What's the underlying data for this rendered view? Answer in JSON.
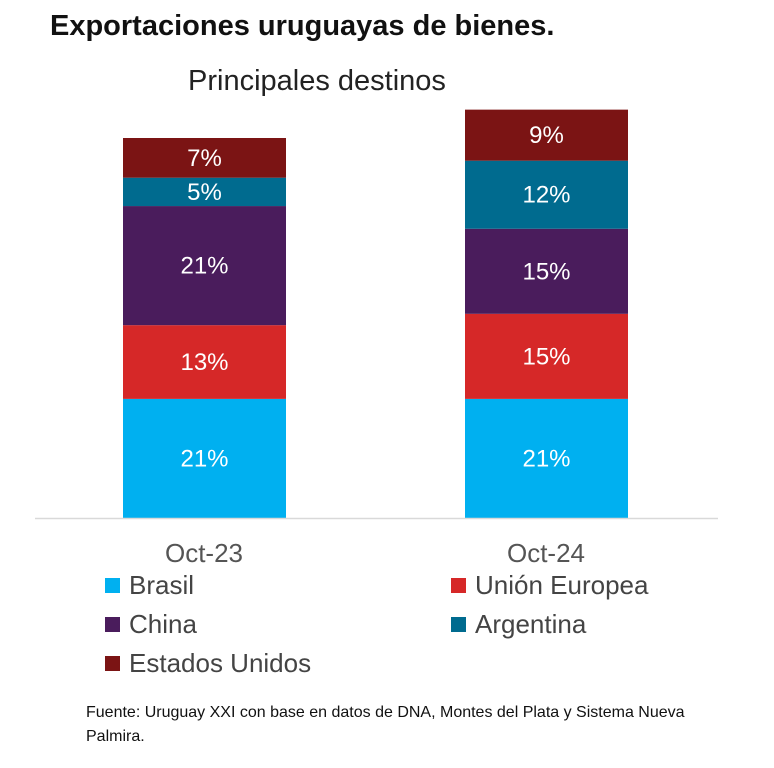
{
  "title": "Exportaciones uruguayas de bienes.",
  "subtitle": "Principales destinos",
  "source": "Fuente: Uruguay XXI con base en datos de DNA, Montes del Plata y Sistema Nueva Palmira.",
  "chart_data": {
    "type": "bar",
    "stacked": true,
    "categories": [
      "Oct-23",
      "Oct-24"
    ],
    "series": [
      {
        "name": "Brasil",
        "color": "#00b0f0",
        "values": [
          21,
          21
        ],
        "labels": [
          "21%",
          "21%"
        ]
      },
      {
        "name": "Unión Europea",
        "color": "#d62828",
        "values": [
          13,
          15
        ],
        "labels": [
          "13%",
          "15%"
        ]
      },
      {
        "name": "China",
        "color": "#4a1c5c",
        "values": [
          21,
          15
        ],
        "labels": [
          "21%",
          "15%"
        ]
      },
      {
        "name": "Argentina",
        "color": "#006b8f",
        "values": [
          5,
          12
        ],
        "labels": [
          "5%",
          "12%"
        ]
      },
      {
        "name": "Estados Unidos",
        "color": "#7b1414",
        "values": [
          7,
          9
        ],
        "labels": [
          "7%",
          "9%"
        ]
      }
    ],
    "ylabel": "",
    "legend": "bottom",
    "grid": false
  }
}
